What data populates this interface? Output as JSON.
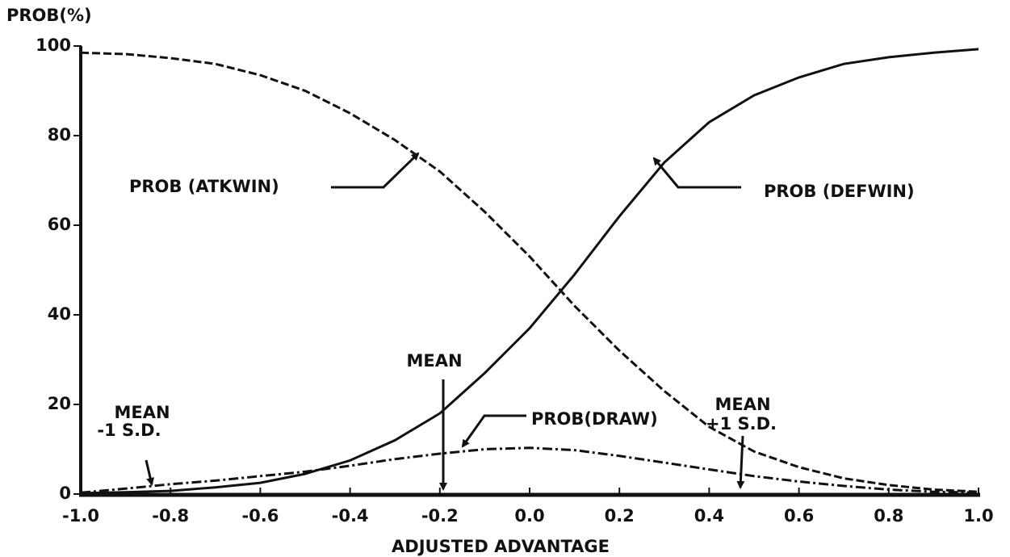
{
  "chart_data": {
    "type": "line",
    "ylabel": "PROB(%)",
    "xlabel": "ADJUSTED ADVANTAGE",
    "x": [
      -1.0,
      -0.9,
      -0.8,
      -0.7,
      -0.6,
      -0.5,
      -0.4,
      -0.3,
      -0.2,
      -0.1,
      0.0,
      0.1,
      0.2,
      0.3,
      0.4,
      0.5,
      0.6,
      0.7,
      0.8,
      0.9,
      1.0
    ],
    "series": [
      {
        "name": "PROB (ATKWIN)",
        "color": "#111111",
        "style": "dashed",
        "values": [
          98.5,
          98.2,
          97.3,
          96,
          93.5,
          90,
          85,
          79,
          72,
          63,
          53,
          42,
          32,
          23,
          15,
          9.5,
          6,
          3.5,
          2,
          1,
          0.5
        ]
      },
      {
        "name": "PROB (DEFWIN)",
        "color": "#111111",
        "style": "solid",
        "values": [
          0.2,
          0.4,
          0.7,
          1.5,
          2.5,
          4.5,
          7.5,
          12,
          18,
          27,
          37,
          49,
          62,
          74,
          83,
          89,
          93,
          96,
          97.5,
          98.5,
          99.3
        ]
      },
      {
        "name": "PROB(DRAW)",
        "color": "#111111",
        "style": "dashdot",
        "values": [
          0.3,
          1.2,
          2.2,
          3,
          4,
          5,
          6.3,
          7.8,
          9,
          10,
          10.3,
          9.8,
          8.5,
          7,
          5.5,
          4,
          2.8,
          1.8,
          1,
          0.5,
          0.3
        ]
      }
    ],
    "annotations": [
      "MEAN",
      "MEAN",
      "-1 S.D.",
      "MEAN",
      "+1 S.D."
    ],
    "xlim": [
      -1.0,
      1.0
    ],
    "xticks": [
      {
        "value": -1.0,
        "label": "-1.0"
      },
      -0.8,
      -0.6,
      -0.4,
      -0.2,
      {
        "value": 0.0,
        "label": "0.0"
      },
      0.2,
      0.4,
      0.6,
      0.8,
      {
        "value": 1.0,
        "label": "1.0"
      }
    ],
    "ylim": [
      0,
      100
    ],
    "yticks": [
      0,
      20,
      40,
      60,
      80,
      100
    ],
    "grid": false
  }
}
